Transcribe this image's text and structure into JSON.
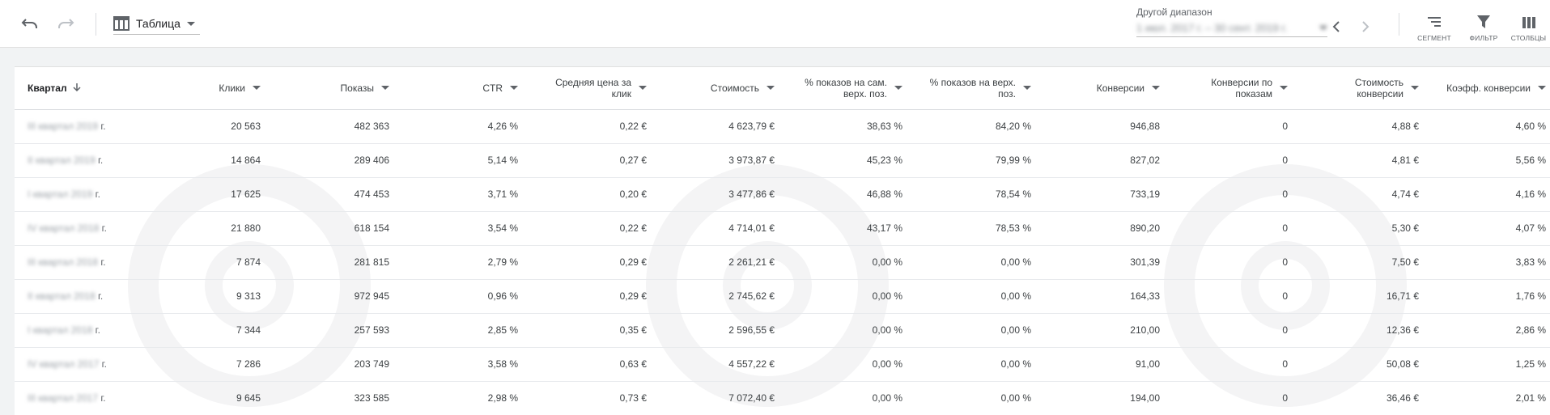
{
  "toolbar": {
    "undo_icon": "undo-icon",
    "redo_icon": "redo-icon",
    "view_label": "Таблица",
    "range_label": "Другой диапазон",
    "range_value": "1 июл. 2017 г. – 30 сент. 2019 г.",
    "tools": {
      "segment": "СЕГМЕНТ",
      "filter": "ФИЛЬТР",
      "columns": "СТОЛБЦЫ"
    }
  },
  "table": {
    "headers": {
      "quarter": "Квартал",
      "clicks": "Клики",
      "impressions": "Показы",
      "ctr": "CTR",
      "avg_cpc": "Средняя цена за клик",
      "cost": "Стоимость",
      "abs_top": "% показов на сам. верх. поз.",
      "top": "% показов на верх. поз.",
      "conversions": "Конверсии",
      "view_conversions": "Конверсии по показам",
      "cost_per_conv": "Стоимость конверсии",
      "conv_rate": "Коэфф. конверсии"
    },
    "rows": [
      {
        "q_pre": "III квартал 2019",
        "q_suf": "г.",
        "clicks": "20 563",
        "impr": "482 363",
        "ctr": "4,26 %",
        "cpc": "0,22 €",
        "cost": "4 623,79 €",
        "abs": "38,63 %",
        "top": "84,20 %",
        "conv": "946,88",
        "vconv": "0",
        "cpconv": "4,88 €",
        "rate": "4,60 %"
      },
      {
        "q_pre": "II квартал 2019",
        "q_suf": "г.",
        "clicks": "14 864",
        "impr": "289 406",
        "ctr": "5,14 %",
        "cpc": "0,27 €",
        "cost": "3 973,87 €",
        "abs": "45,23 %",
        "top": "79,99 %",
        "conv": "827,02",
        "vconv": "0",
        "cpconv": "4,81 €",
        "rate": "5,56 %"
      },
      {
        "q_pre": "I квартал 2019",
        "q_suf": "г.",
        "clicks": "17 625",
        "impr": "474 453",
        "ctr": "3,71 %",
        "cpc": "0,20 €",
        "cost": "3 477,86 €",
        "abs": "46,88 %",
        "top": "78,54 %",
        "conv": "733,19",
        "vconv": "0",
        "cpconv": "4,74 €",
        "rate": "4,16 %"
      },
      {
        "q_pre": "IV квартал 2018",
        "q_suf": "г.",
        "clicks": "21 880",
        "impr": "618 154",
        "ctr": "3,54 %",
        "cpc": "0,22 €",
        "cost": "4 714,01 €",
        "abs": "43,17 %",
        "top": "78,53 %",
        "conv": "890,20",
        "vconv": "0",
        "cpconv": "5,30 €",
        "rate": "4,07 %"
      },
      {
        "q_pre": "III квартал 2018",
        "q_suf": "г.",
        "clicks": "7 874",
        "impr": "281 815",
        "ctr": "2,79 %",
        "cpc": "0,29 €",
        "cost": "2 261,21 €",
        "abs": "0,00 %",
        "top": "0,00 %",
        "conv": "301,39",
        "vconv": "0",
        "cpconv": "7,50 €",
        "rate": "3,83 %"
      },
      {
        "q_pre": "II квартал 2018",
        "q_suf": "г.",
        "clicks": "9 313",
        "impr": "972 945",
        "ctr": "0,96 %",
        "cpc": "0,29 €",
        "cost": "2 745,62 €",
        "abs": "0,00 %",
        "top": "0,00 %",
        "conv": "164,33",
        "vconv": "0",
        "cpconv": "16,71 €",
        "rate": "1,76 %"
      },
      {
        "q_pre": "I квартал 2018",
        "q_suf": "г.",
        "clicks": "7 344",
        "impr": "257 593",
        "ctr": "2,85 %",
        "cpc": "0,35 €",
        "cost": "2 596,55 €",
        "abs": "0,00 %",
        "top": "0,00 %",
        "conv": "210,00",
        "vconv": "0",
        "cpconv": "12,36 €",
        "rate": "2,86 %"
      },
      {
        "q_pre": "IV квартал 2017",
        "q_suf": "г.",
        "clicks": "7 286",
        "impr": "203 749",
        "ctr": "3,58 %",
        "cpc": "0,63 €",
        "cost": "4 557,22 €",
        "abs": "0,00 %",
        "top": "0,00 %",
        "conv": "91,00",
        "vconv": "0",
        "cpconv": "50,08 €",
        "rate": "1,25 %"
      },
      {
        "q_pre": "III квартал 2017",
        "q_suf": "г.",
        "clicks": "9 645",
        "impr": "323 585",
        "ctr": "2,98 %",
        "cpc": "0,73 €",
        "cost": "7 072,40 €",
        "abs": "0,00 %",
        "top": "0,00 %",
        "conv": "194,00",
        "vconv": "0",
        "cpconv": "36,46 €",
        "rate": "2,01 %"
      }
    ]
  }
}
